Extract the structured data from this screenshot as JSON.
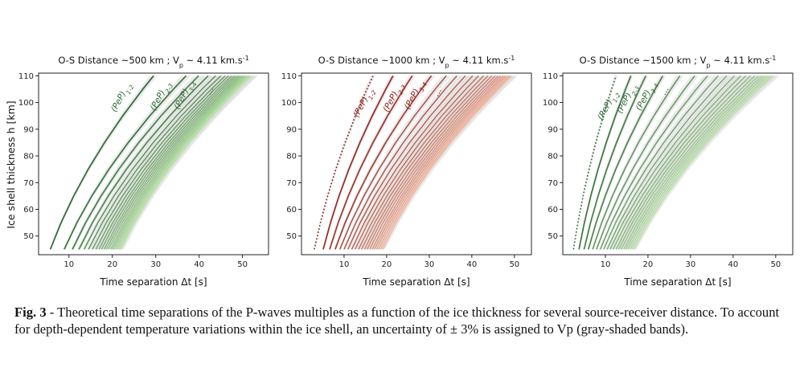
{
  "figure": {
    "ylabel": "Ice shell thickness h [km]",
    "caption_label": "Fig. 3",
    "caption_text": " - Theoretical time separations of the P-waves multiples as a function of the ice thickness for several source-receiver distance. To account for depth-dependent temperature variations within the ice shell, an uncertainty of ± 3% is assigned to Vp (gray-shaded bands)."
  },
  "colors": {
    "green_dark": "#2e6b33",
    "green_light": "#b9e3a7",
    "red_dark": "#8c1d18",
    "red_light": "#f6b399",
    "band_gray": "#d9d9d9"
  },
  "chart_data": [
    {
      "type": "line",
      "title": "O-S Distance ~500 km ; V",
      "title_sub": "p",
      "title_tail": " ~ 4.11 km.s",
      "title_sup": "-1",
      "xlabel": "Time separation Δt [s]",
      "ylabel": "Ice shell thickness h [km]",
      "xlim": [
        3,
        56
      ],
      "ylim": [
        43,
        111
      ],
      "xticks": [
        10,
        20,
        30,
        40,
        50
      ],
      "yticks": [
        50,
        60,
        70,
        80,
        90,
        100,
        110
      ],
      "grid": false,
      "palette": "green",
      "first_dotted": false,
      "x_at_h45": [
        5.7,
        8.9,
        10.8,
        12.3,
        13.5,
        14.5,
        15.4,
        16.2,
        16.9,
        17.5,
        18.1,
        18.6,
        19.1,
        19.6,
        20.0,
        20.4,
        20.8,
        21.2,
        21.6,
        22.0
      ],
      "x_at_h110": [
        29.5,
        37.0,
        39.9,
        42.1,
        43.8,
        45.0,
        46.0,
        46.8,
        47.5,
        48.1,
        48.6,
        49.1,
        49.5,
        49.9,
        50.3,
        50.7,
        51.0,
        51.3,
        51.7,
        52.0
      ],
      "labels": [
        {
          "text": "(PeP)",
          "sub": "1-2",
          "x": 22.5,
          "y": 101.5
        },
        {
          "text": "(PeP)",
          "sub": "2-3",
          "x": 31.5,
          "y": 102
        },
        {
          "text": "(PeP)",
          "sub": "3-4",
          "x": 37.0,
          "y": 102.5
        },
        {
          "text": "...",
          "sub": "",
          "x": 43.0,
          "y": 104
        }
      ]
    },
    {
      "type": "line",
      "title": "O-S Distance ~1000 km ; V",
      "title_sub": "p",
      "title_tail": " ~ 4.11 km.s",
      "title_sup": "-1",
      "xlabel": "Time separation Δt [s]",
      "ylabel": "",
      "xlim": [
        0,
        54
      ],
      "ylim": [
        43,
        111
      ],
      "xticks": [
        10,
        20,
        30,
        40,
        50
      ],
      "yticks": [
        50,
        60,
        70,
        80,
        90,
        100,
        110
      ],
      "grid": false,
      "palette": "red",
      "first_dotted": true,
      "x_at_h45": [
        3.0,
        5.1,
        6.6,
        7.9,
        9.0,
        10.0,
        10.9,
        11.8,
        12.6,
        13.4,
        14.1,
        14.8,
        15.4,
        16.0,
        16.6,
        17.1,
        17.6,
        18.1,
        18.6,
        19.1
      ],
      "x_at_h110": [
        16.8,
        21.5,
        26.0,
        30.5,
        34.0,
        36.5,
        38.5,
        40.2,
        41.6,
        42.8,
        43.8,
        44.7,
        45.5,
        46.2,
        46.8,
        47.4,
        47.9,
        48.4,
        48.9,
        49.3
      ],
      "labels": [
        {
          "text": "(PeP)",
          "sub": "1-2",
          "x": 15.0,
          "y": 99.5
        },
        {
          "text": "(PeP)",
          "sub": "2-3",
          "x": 22.0,
          "y": 101.5
        },
        {
          "text": "(PeP)",
          "sub": "3-4",
          "x": 27.0,
          "y": 102.5
        },
        {
          "text": "...",
          "sub": "",
          "x": 32.5,
          "y": 103.5
        }
      ]
    },
    {
      "type": "line",
      "title": "O-S Distance ~1500 km ; V",
      "title_sub": "p",
      "title_tail": " ~ 4.11 km.s",
      "title_sup": "-1",
      "xlabel": "Time separation Δt [s]",
      "ylabel": "",
      "xlim": [
        0,
        54
      ],
      "ylim": [
        43,
        111
      ],
      "xticks": [
        10,
        20,
        30,
        40,
        50
      ],
      "yticks": [
        50,
        60,
        70,
        80,
        90,
        100,
        110
      ],
      "grid": false,
      "palette": "green",
      "first_dotted": true,
      "x_at_h45": [
        2.5,
        3.8,
        5.0,
        6.0,
        7.0,
        7.9,
        8.8,
        9.6,
        10.4,
        11.1,
        11.8,
        12.5,
        13.1,
        13.7,
        14.3,
        14.8,
        15.3,
        15.8,
        16.3,
        16.8
      ],
      "x_at_h110": [
        12.5,
        16.0,
        19.5,
        23.5,
        27.5,
        31.0,
        34.0,
        36.5,
        38.5,
        40.3,
        41.8,
        43.0,
        44.1,
        45.1,
        46.0,
        46.8,
        47.5,
        48.2,
        48.8,
        49.4
      ],
      "labels": [
        {
          "text": "(PeP)",
          "sub": "1-2",
          "x": 11.0,
          "y": 98.5
        },
        {
          "text": "(PeP)",
          "sub": "2-3",
          "x": 15.5,
          "y": 101
        },
        {
          "text": "(PeP)",
          "sub": "3-4",
          "x": 20.0,
          "y": 102
        },
        {
          "text": "...",
          "sub": "",
          "x": 24.5,
          "y": 104
        }
      ]
    }
  ]
}
